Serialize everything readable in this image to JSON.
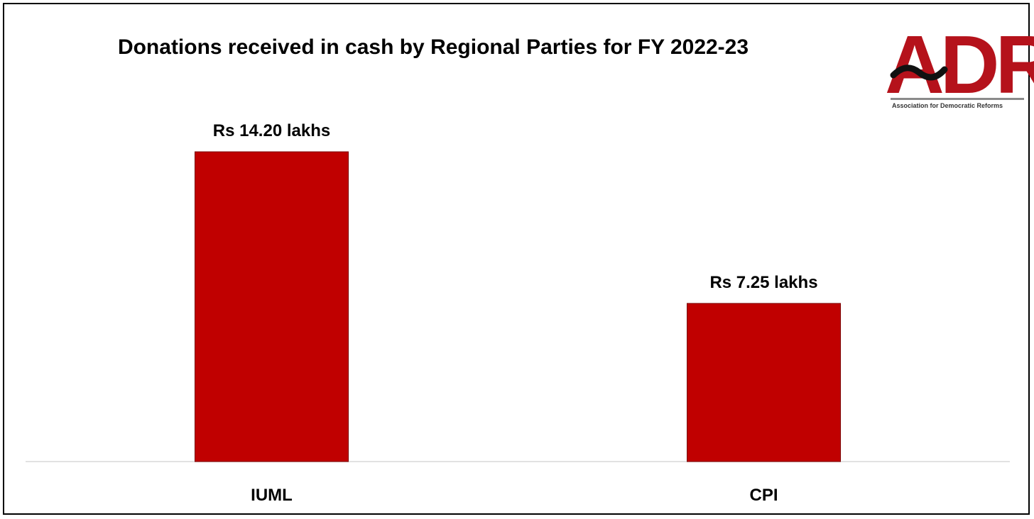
{
  "chart_data": {
    "type": "bar",
    "title": "Donations received in cash by Regional Parties for FY 2022-23",
    "categories": [
      "IUML",
      "CPI"
    ],
    "values": [
      14.2,
      7.25
    ],
    "data_labels": [
      "Rs 14.20 lakhs",
      "Rs 7.25 lakhs"
    ],
    "unit": "Rs lakhs",
    "xlabel": "",
    "ylabel": "",
    "ylim": [
      0,
      16.25
    ],
    "grid": false,
    "legend": "none",
    "bar_color": "#c00000"
  },
  "logo": {
    "letters": "ADR",
    "tagline": "Association for Democratic Reforms",
    "color": "#b5121b"
  }
}
